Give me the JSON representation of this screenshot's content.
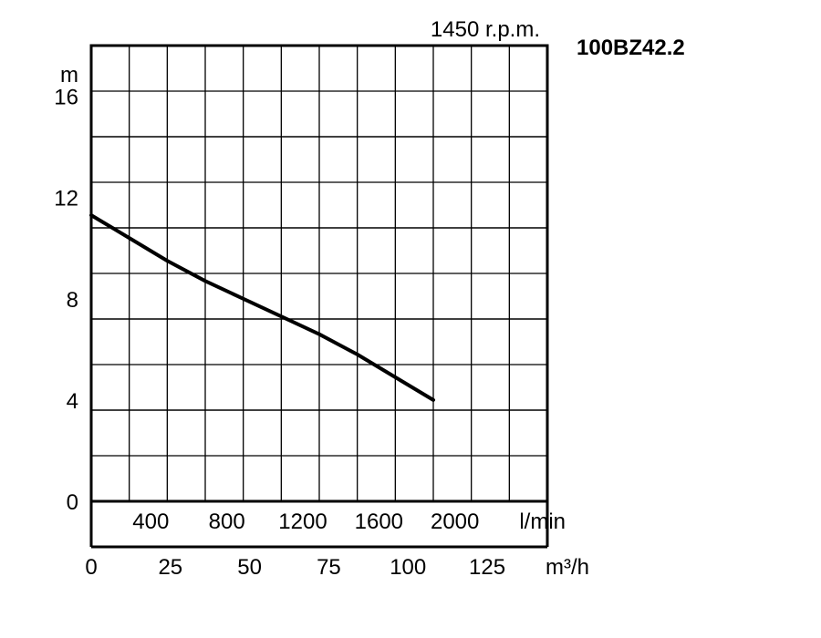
{
  "chart_data": {
    "type": "line",
    "speed_label": "1450 r.p.m.",
    "model": "100BZ42.2",
    "y_unit": "m",
    "ylim": [
      0,
      18
    ],
    "yticks": [
      "0",
      "4",
      "8",
      "12",
      "16"
    ],
    "x_unit_lmin": "l/min",
    "x_ticks_lmin": [
      "400",
      "800",
      "1200",
      "1600",
      "2000"
    ],
    "x_unit_m3h": "m³/h",
    "x_ticks_m3h": [
      "0",
      "25",
      "50",
      "75",
      "100",
      "125"
    ],
    "grid": true,
    "series": [
      {
        "x_lmin": [
          0,
          200,
          400,
          600,
          800,
          1000,
          1200,
          1400,
          1600,
          1800
        ],
        "y_m": [
          11.3,
          10.4,
          9.5,
          8.7,
          8.0,
          7.3,
          6.6,
          5.8,
          4.9,
          4.0
        ]
      }
    ]
  }
}
